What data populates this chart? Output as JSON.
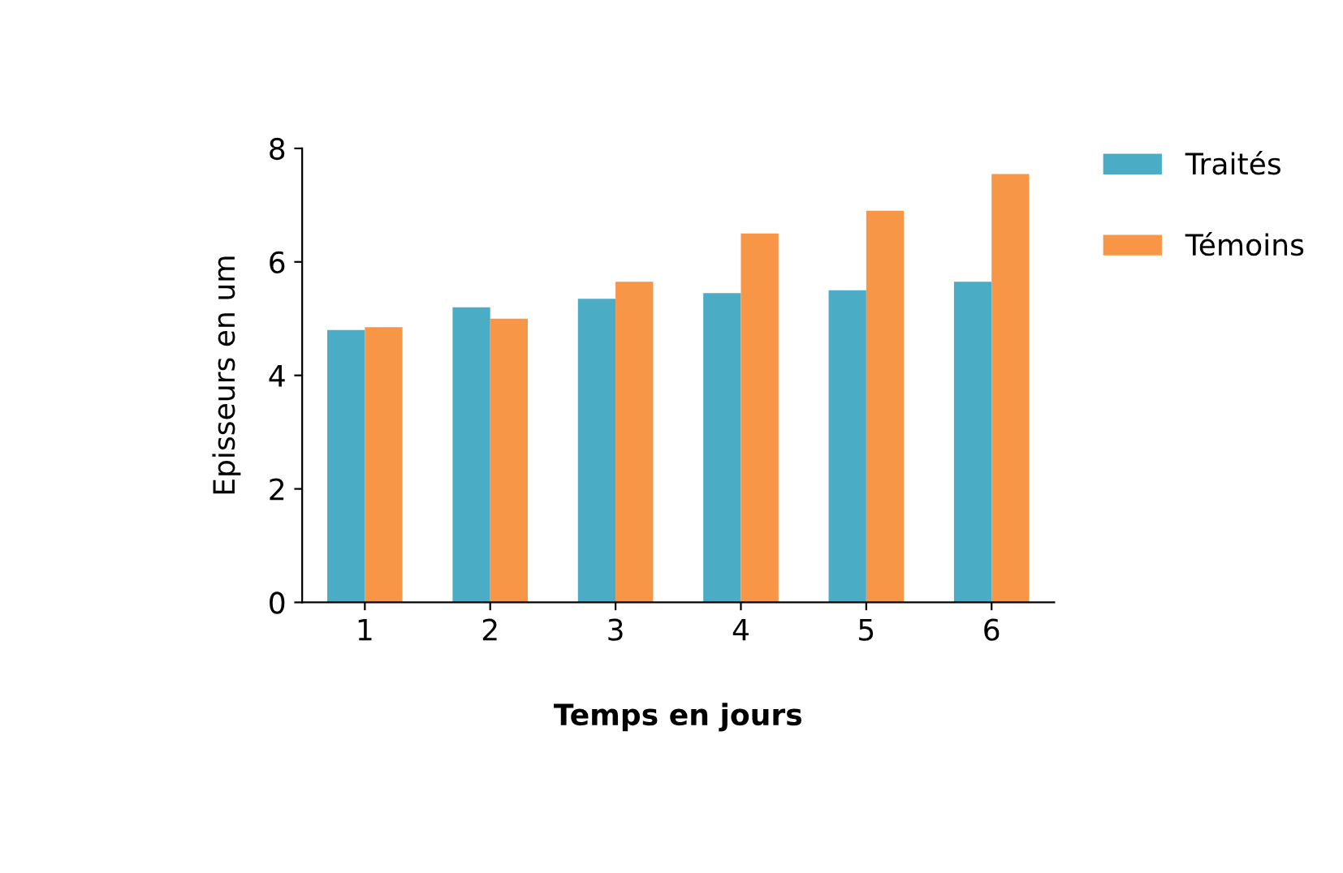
{
  "chart_data": {
    "type": "bar",
    "xlabel": "Temps en jours",
    "ylabel": "Episseurs en um",
    "categories": [
      "1",
      "2",
      "3",
      "4",
      "5",
      "6"
    ],
    "series": [
      {
        "name": "Traités",
        "color": "#4bacc6",
        "values": [
          4.8,
          5.2,
          5.35,
          5.45,
          5.5,
          5.65
        ]
      },
      {
        "name": "Témoins",
        "color": "#f79646",
        "values": [
          4.85,
          5.0,
          5.65,
          6.5,
          6.9,
          7.55
        ]
      }
    ],
    "ylim": [
      0,
      8
    ],
    "yticks": [
      0,
      2,
      4,
      6,
      8
    ],
    "grid": false,
    "legend": "right"
  }
}
